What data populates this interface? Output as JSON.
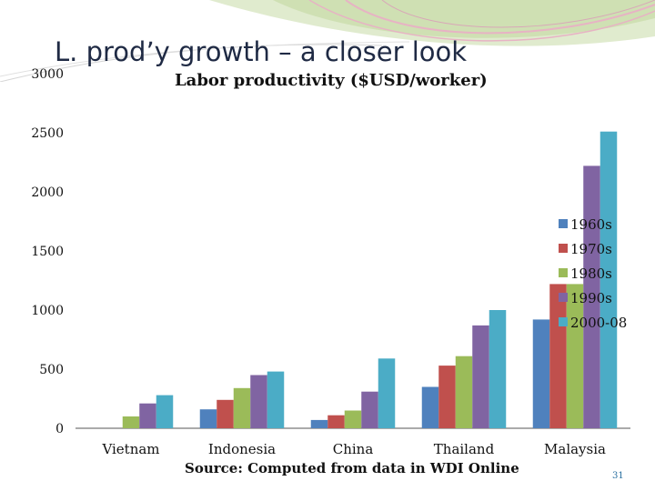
{
  "slide": {
    "title": "L. prod’y growth – a closer look",
    "page_number": "31"
  },
  "chart_data": {
    "type": "bar",
    "title": "Labor productivity ($USD/worker)",
    "source": "Source: Computed from data in WDI Online",
    "categories": [
      "Vietnam",
      "Indonesia",
      "China",
      "Thailand",
      "Malaysia"
    ],
    "series": [
      {
        "name": "1960s",
        "color": "#4f81bd",
        "values": [
          null,
          160,
          70,
          350,
          920
        ]
      },
      {
        "name": "1970s",
        "color": "#c0504d",
        "values": [
          null,
          240,
          110,
          530,
          1220
        ]
      },
      {
        "name": "1980s",
        "color": "#9bbb59",
        "values": [
          100,
          340,
          150,
          610,
          1220
        ]
      },
      {
        "name": "1990s",
        "color": "#8064a2",
        "values": [
          210,
          450,
          310,
          870,
          2220
        ]
      },
      {
        "name": "2000-08",
        "color": "#4bacc6",
        "values": [
          280,
          480,
          590,
          1000,
          2510
        ]
      }
    ],
    "ylim": [
      0,
      3000
    ],
    "yticks": [
      "0",
      "500",
      "1000",
      "1500",
      "2000",
      "2500",
      "3000"
    ],
    "grid": false,
    "legend": "right"
  }
}
